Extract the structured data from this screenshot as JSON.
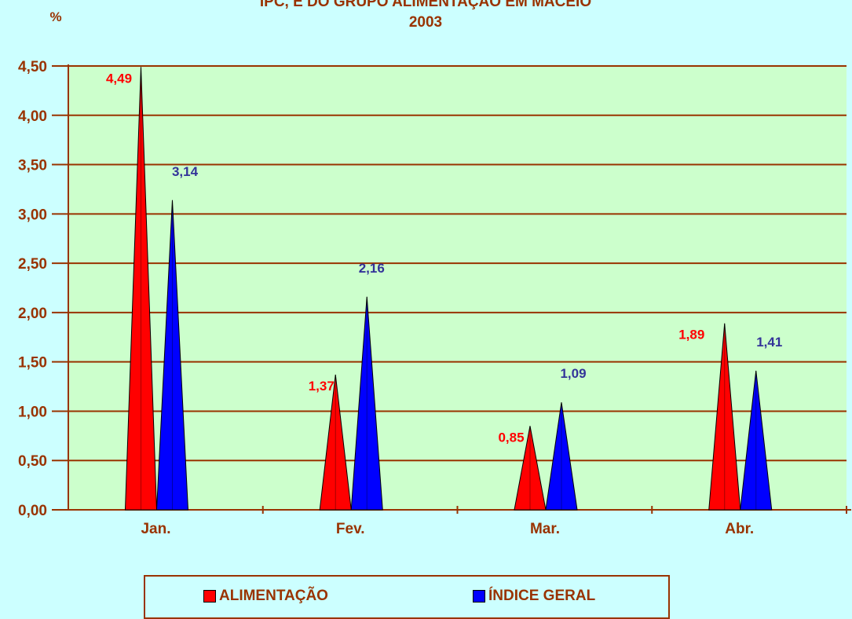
{
  "chart_data": {
    "type": "bar",
    "title_lines": [
      "IPC, E DO GRUPO ALIMENTAÇÃO EM MACEIÓ",
      "2003"
    ],
    "ylabel": "%",
    "categories": [
      "Jan.",
      "Fev.",
      "Mar.",
      "Abr."
    ],
    "ylim": [
      0,
      4.5
    ],
    "yticks": [
      "0,00",
      "0,50",
      "1,00",
      "1,50",
      "2,00",
      "2,50",
      "3,00",
      "3,50",
      "4,00",
      "4,50"
    ],
    "series": [
      {
        "name": "ALIMENTAÇÃO",
        "values": [
          4.49,
          1.37,
          0.85,
          1.89
        ],
        "labels": [
          "4,49",
          "1,37",
          "0,85",
          "1,89"
        ],
        "color": "#ff0000"
      },
      {
        "name": "ÍNDICE GERAL",
        "values": [
          3.14,
          2.16,
          1.09,
          1.41
        ],
        "labels": [
          "3,14",
          "2,16",
          "1,09",
          "1,41"
        ],
        "color": "#0000ff"
      }
    ],
    "label_colors": [
      "#ff0000",
      "#333399"
    ],
    "plot_background": "#ccffcc",
    "gridline_color": "#993300",
    "grid": true,
    "legend_position": "bottom"
  }
}
